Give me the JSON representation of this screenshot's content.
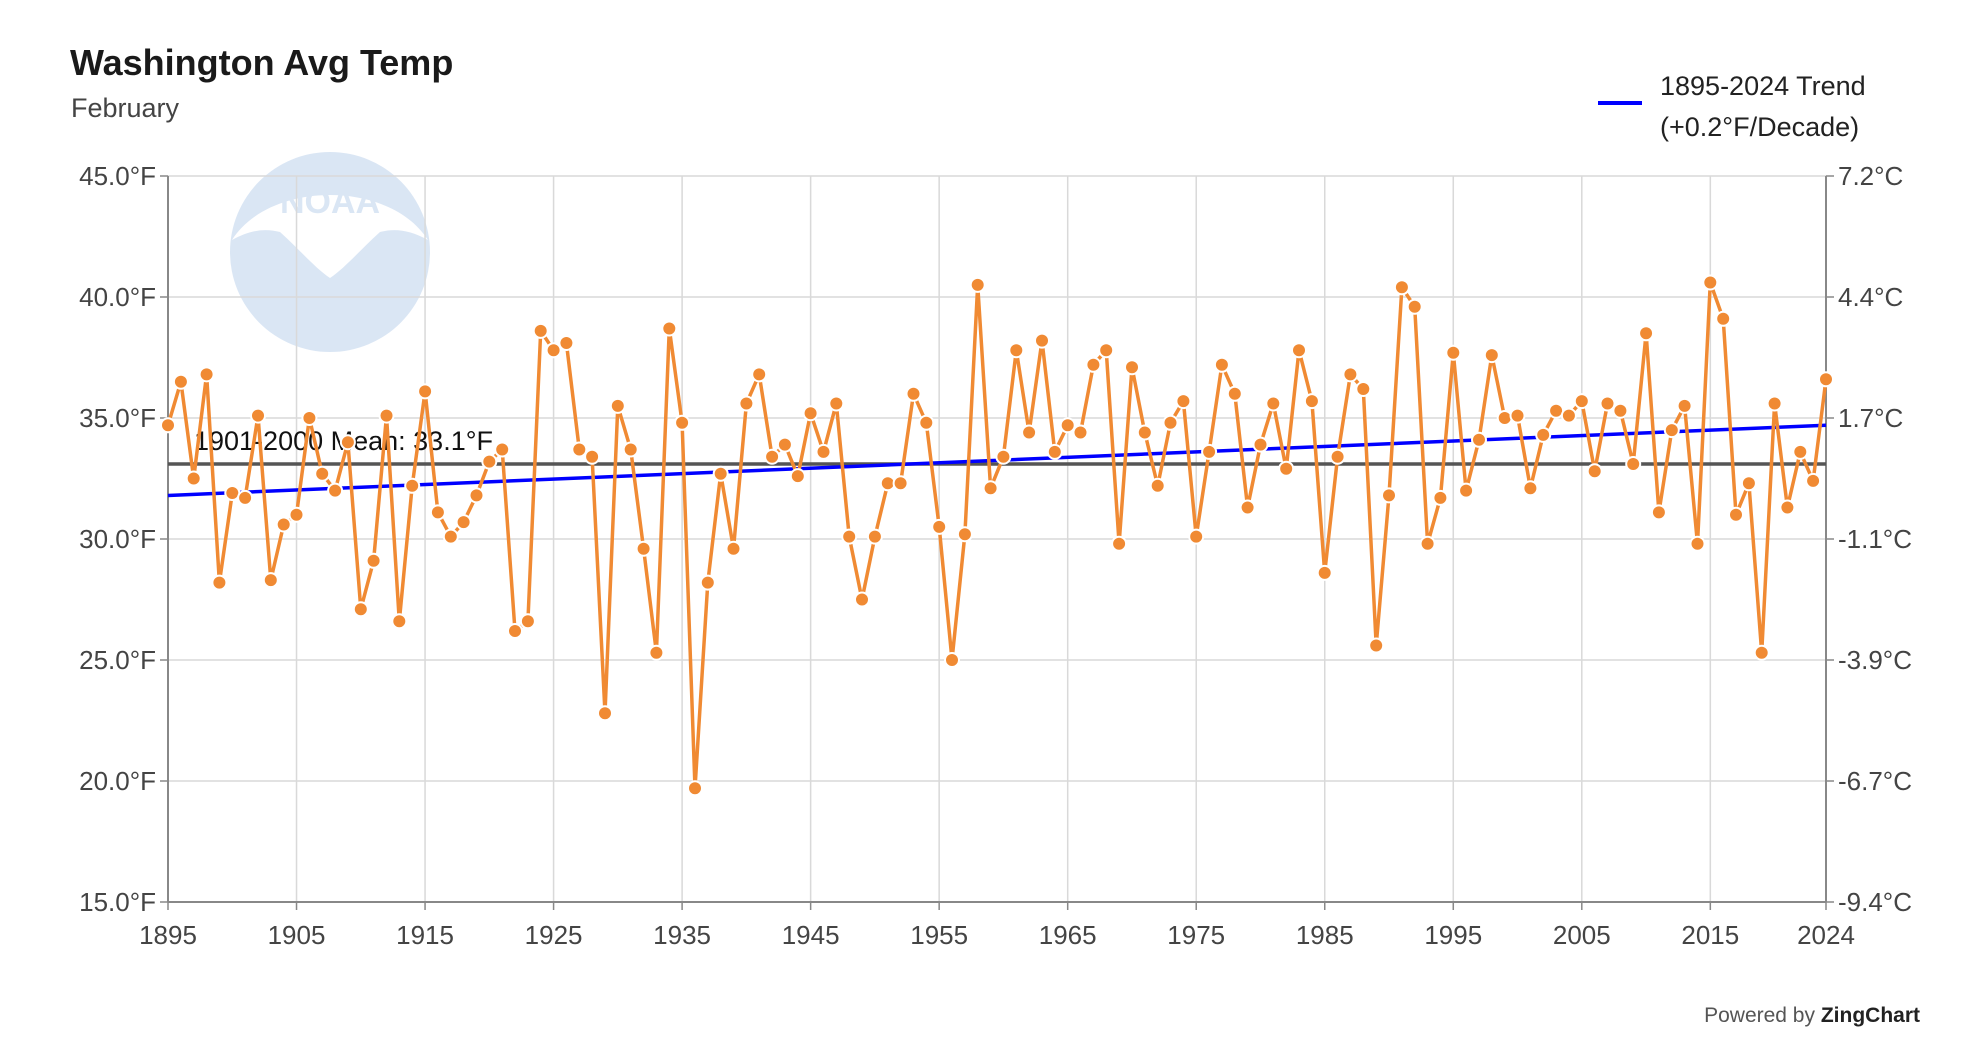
{
  "header": {
    "title": "Washington Avg Temp",
    "subtitle": "February"
  },
  "legend": {
    "line1": "1895-2024 Trend",
    "line2": "(+0.2°F/Decade)"
  },
  "footer": {
    "powered_prefix": "Powered by",
    "powered_brand": "ZingChart"
  },
  "watermark": {
    "icon": "noaa-logo",
    "text": "NOAA"
  },
  "colors": {
    "series": "#f08a33",
    "trend": "#0000ff",
    "mean": "#555555",
    "grid": "#d9d9d9",
    "axis": "#888888"
  },
  "chart_data": {
    "type": "line",
    "title": "Washington Avg Temp",
    "subtitle": "February",
    "grid": true,
    "legend_position": "top-right",
    "x_range": [
      1895,
      2024
    ],
    "x_ticks": [
      1895,
      1905,
      1915,
      1925,
      1935,
      1945,
      1955,
      1965,
      1975,
      1985,
      1995,
      2005,
      2015,
      2024
    ],
    "ylim": [
      15,
      45
    ],
    "y_ticks": [
      15,
      20,
      25,
      30,
      35,
      40,
      45
    ],
    "y_tick_labels": [
      "15.0°F",
      "20.0°F",
      "25.0°F",
      "30.0°F",
      "35.0°F",
      "40.0°F",
      "45.0°F"
    ],
    "y2_tick_labels": [
      "-9.4°C",
      "-6.7°C",
      "-3.9°C",
      "-1.1°C",
      "1.7°C",
      "4.4°C",
      "7.2°C"
    ],
    "series": [
      {
        "x_start": 1895,
        "values": [
          34.7,
          36.5,
          32.5,
          36.8,
          28.2,
          31.9,
          31.7,
          35.1,
          28.3,
          30.6,
          31.0,
          35.0,
          32.7,
          32.0,
          34.0,
          27.1,
          29.1,
          35.1,
          26.6,
          32.2,
          36.1,
          31.1,
          30.1,
          30.7,
          31.8,
          33.2,
          33.7,
          26.2,
          26.6,
          38.6,
          37.8,
          38.1,
          33.7,
          33.4,
          22.8,
          35.5,
          33.7,
          29.6,
          25.3,
          38.7,
          34.8,
          19.7,
          28.2,
          32.7,
          29.6,
          35.6,
          36.8,
          33.4,
          33.9,
          32.6,
          35.2,
          33.6,
          35.6,
          30.1,
          27.5,
          30.1,
          32.3,
          32.3,
          36.0,
          34.8,
          30.5,
          25.0,
          30.2,
          40.5,
          32.1,
          33.4,
          37.8,
          34.4,
          38.2,
          33.6,
          34.7,
          34.4,
          37.2,
          37.8,
          29.8,
          37.1,
          34.4,
          32.2,
          34.8,
          35.7,
          30.1,
          33.6,
          37.2,
          36.0,
          31.3,
          33.9,
          35.6,
          32.9,
          37.8,
          35.7,
          28.6,
          33.4,
          36.8,
          36.2,
          25.6,
          31.8,
          40.4,
          39.6,
          29.8,
          31.7,
          37.7,
          32.0,
          34.1,
          37.6,
          35.0,
          35.1,
          32.1,
          34.3,
          35.3,
          35.1,
          35.7,
          32.8,
          35.6,
          35.3,
          33.1,
          38.5,
          31.1,
          34.5,
          35.5,
          29.8,
          40.6,
          39.1,
          31.0,
          32.3,
          25.3,
          35.6,
          31.3,
          33.6,
          32.4,
          36.6
        ]
      }
    ],
    "trend": {
      "name": "1895-2024 Trend",
      "x": [
        1895,
        2024
      ],
      "y": [
        31.8,
        34.7
      ]
    },
    "mean": {
      "label": "1901-2000 Mean: 33.1°F",
      "value": 33.1
    }
  }
}
